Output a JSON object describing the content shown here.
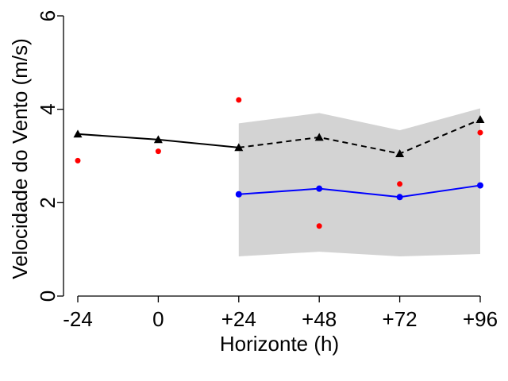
{
  "chart_data": {
    "type": "line",
    "xlabel": "Horizonte (h)",
    "ylabel": "Velocidade do Vento (m/s)",
    "categories": [
      "-24",
      "0",
      "+24",
      "+48",
      "+72",
      "+96"
    ],
    "ylim": [
      0,
      6
    ],
    "yticks": [
      0,
      2,
      4,
      6
    ],
    "grid": false,
    "legend": "none",
    "band": {
      "color": "#d3d3d3",
      "x": [
        "+24",
        "+48",
        "+72",
        "+96"
      ],
      "upper": [
        3.7,
        3.92,
        3.55,
        4.02
      ],
      "lower": [
        0.85,
        0.95,
        0.85,
        0.9
      ]
    },
    "series": [
      {
        "color": "#000000",
        "marker": "triangle",
        "x": [
          "-24",
          "0",
          "+24",
          "+48",
          "+72",
          "+96"
        ],
        "values": [
          3.47,
          3.35,
          3.18,
          3.4,
          3.05,
          3.78
        ],
        "solid_until": "+24",
        "dashed_from": "+24"
      },
      {
        "color": "#0000ff",
        "marker": "circle",
        "line": "solid",
        "x": [
          "+24",
          "+48",
          "+72",
          "+96"
        ],
        "values": [
          2.18,
          2.3,
          2.12,
          2.37
        ]
      },
      {
        "color": "#ff0000",
        "marker": "dot",
        "line": "none",
        "x": [
          "-24",
          "0",
          "+24",
          "+48",
          "+72",
          "+96"
        ],
        "values": [
          2.9,
          3.1,
          4.2,
          1.5,
          2.4,
          3.5
        ]
      }
    ]
  }
}
